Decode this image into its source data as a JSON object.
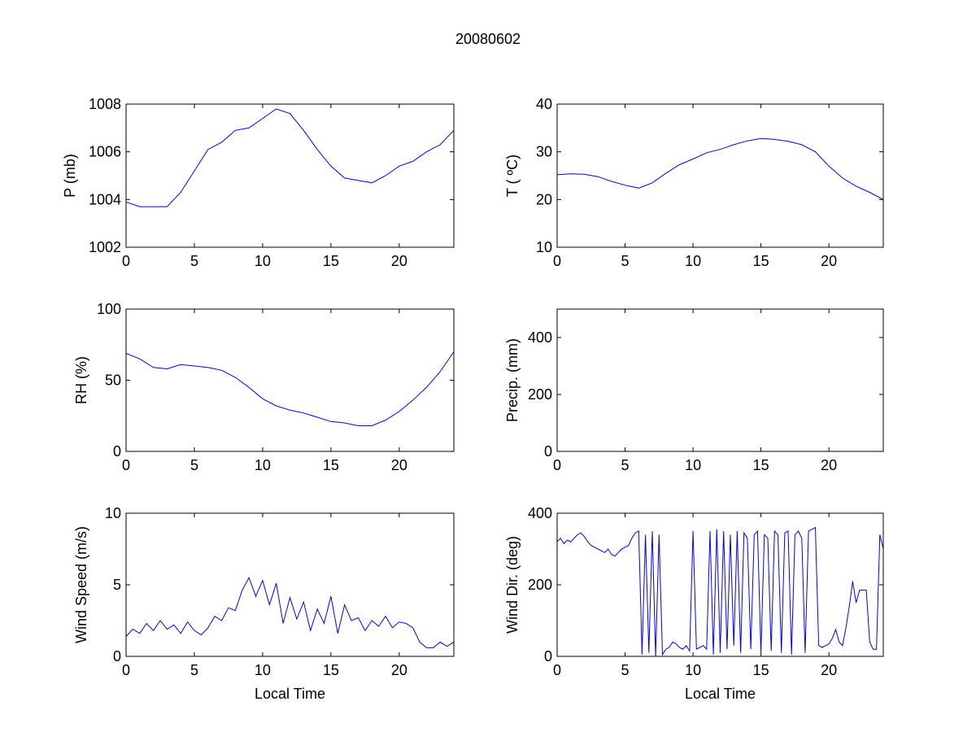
{
  "figure_title": "20080602",
  "series_color": "#0000ff",
  "chart_data": [
    {
      "type": "line",
      "id": "pressure",
      "xlabel": "",
      "ylabel": "P (mb)",
      "xlim": [
        0,
        24
      ],
      "ylim": [
        1002,
        1008
      ],
      "xticks": [
        0,
        5,
        10,
        15,
        20
      ],
      "yticks": [
        1002,
        1004,
        1006,
        1008
      ],
      "x_start": 0,
      "x_step": 1,
      "values": [
        1003.9,
        1003.7,
        1003.7,
        1003.7,
        1004.3,
        1005.2,
        1006.1,
        1006.4,
        1006.9,
        1007.0,
        1007.4,
        1007.8,
        1007.6,
        1006.9,
        1006.1,
        1005.4,
        1004.9,
        1004.8,
        1004.7,
        1005.0,
        1005.4,
        1005.6,
        1006.0,
        1006.3,
        1006.9
      ]
    },
    {
      "type": "line",
      "id": "temperature",
      "xlabel": "",
      "ylabel": "T ( ºC)",
      "xlim": [
        0,
        24
      ],
      "ylim": [
        10,
        40
      ],
      "xticks": [
        0,
        5,
        10,
        15,
        20
      ],
      "yticks": [
        10,
        20,
        30,
        40
      ],
      "x_start": 0,
      "x_step": 1,
      "values": [
        25.2,
        25.4,
        25.3,
        24.8,
        23.8,
        23.0,
        22.4,
        23.5,
        25.5,
        27.3,
        28.5,
        29.8,
        30.5,
        31.5,
        32.3,
        32.8,
        32.6,
        32.2,
        31.5,
        30.0,
        27.0,
        24.5,
        22.8,
        21.5,
        20.0
      ]
    },
    {
      "type": "line",
      "id": "relative-humidity",
      "xlabel": "",
      "ylabel": "RH (%)",
      "xlim": [
        0,
        24
      ],
      "ylim": [
        0,
        100
      ],
      "xticks": [
        0,
        5,
        10,
        15,
        20
      ],
      "yticks": [
        0,
        50,
        100
      ],
      "x_start": 0,
      "x_step": 1,
      "values": [
        69,
        65,
        59,
        58,
        61,
        60,
        59,
        57,
        52,
        45,
        37,
        32,
        29,
        27,
        24,
        21,
        20,
        18,
        18,
        22,
        28,
        36,
        45,
        56,
        70
      ]
    },
    {
      "type": "line",
      "id": "precipitation",
      "xlabel": "",
      "ylabel": "Precip. (mm)",
      "xlim": [
        0,
        24
      ],
      "ylim": [
        0,
        500
      ],
      "xticks": [
        0,
        5,
        10,
        15,
        20
      ],
      "yticks": [
        0,
        200,
        400
      ],
      "x_start": 0,
      "x_step": 1,
      "values": []
    },
    {
      "type": "line",
      "id": "wind-speed",
      "xlabel": "Local Time",
      "ylabel": "Wind Speed (m/s)",
      "xlim": [
        0,
        24
      ],
      "ylim": [
        0,
        10
      ],
      "xticks": [
        0,
        5,
        10,
        15,
        20
      ],
      "yticks": [
        0,
        5,
        10
      ],
      "x_start": 0,
      "x_step": 0.5,
      "values": [
        1.4,
        1.9,
        1.6,
        2.3,
        1.8,
        2.5,
        1.9,
        2.2,
        1.6,
        2.4,
        1.8,
        1.5,
        2.0,
        2.8,
        2.5,
        3.4,
        3.2,
        4.6,
        5.5,
        4.2,
        5.3,
        3.6,
        5.1,
        2.3,
        4.1,
        2.6,
        3.8,
        1.8,
        3.3,
        2.3,
        4.2,
        1.6,
        3.6,
        2.5,
        2.7,
        1.8,
        2.5,
        2.1,
        2.8,
        2.0,
        2.4,
        2.3,
        2.0,
        1.0,
        0.6,
        0.6,
        1.0,
        0.7,
        1.0
      ]
    },
    {
      "type": "line",
      "id": "wind-direction",
      "xlabel": "Local Time",
      "ylabel": "Wind Dir. (deg)",
      "xlim": [
        0,
        24
      ],
      "ylim": [
        0,
        400
      ],
      "xticks": [
        0,
        5,
        10,
        15,
        20
      ],
      "yticks": [
        0,
        200,
        400
      ],
      "x_start": 0,
      "x_step": 0.25,
      "values": [
        320,
        330,
        315,
        325,
        320,
        330,
        340,
        345,
        335,
        320,
        310,
        305,
        300,
        295,
        290,
        300,
        285,
        280,
        290,
        300,
        305,
        310,
        330,
        345,
        350,
        5,
        340,
        10,
        350,
        0,
        340,
        5,
        20,
        25,
        40,
        35,
        25,
        20,
        30,
        15,
        350,
        20,
        25,
        30,
        20,
        350,
        5,
        355,
        10,
        350,
        20,
        340,
        30,
        350,
        10,
        345,
        330,
        20,
        340,
        350,
        10,
        340,
        330,
        15,
        350,
        340,
        10,
        345,
        350,
        5,
        340,
        350,
        330,
        10,
        350,
        355,
        360,
        30,
        25,
        30,
        35,
        50,
        75,
        40,
        30,
        80,
        140,
        210,
        150,
        185,
        185,
        185,
        40,
        20,
        20,
        340,
        300
      ]
    }
  ]
}
